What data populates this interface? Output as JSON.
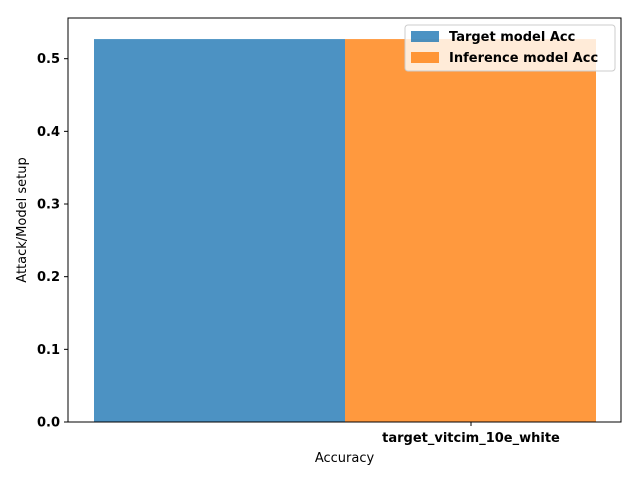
{
  "chart_data": {
    "type": "bar",
    "categories": [
      "target_vitcim_10e_white"
    ],
    "series": [
      {
        "name": "Target model Acc",
        "values": [
          0.527
        ],
        "color": "#1f77b4"
      },
      {
        "name": "Inference model Acc",
        "values": [
          0.527
        ],
        "color": "#ff7f0e"
      }
    ],
    "xlabel": "Accuracy",
    "ylabel": "Attack/Model setup",
    "ylim": [
      0,
      0.556
    ],
    "yticks": [
      "0.0",
      "0.1",
      "0.2",
      "0.3",
      "0.4",
      "0.5"
    ],
    "legend_position": "top-right",
    "grid": false,
    "bar_alpha": 0.8
  }
}
